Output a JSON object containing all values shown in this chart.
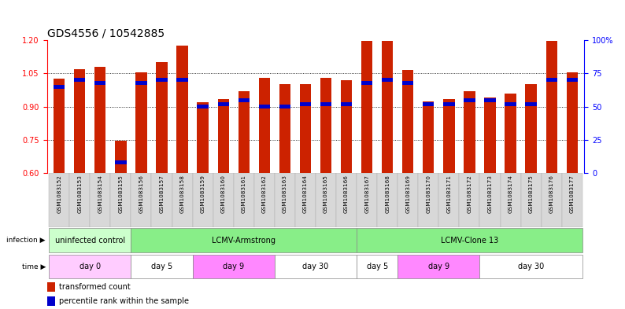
{
  "title": "GDS4556 / 10542885",
  "samples": [
    "GSM1083152",
    "GSM1083153",
    "GSM1083154",
    "GSM1083155",
    "GSM1083156",
    "GSM1083157",
    "GSM1083158",
    "GSM1083159",
    "GSM1083160",
    "GSM1083161",
    "GSM1083162",
    "GSM1083163",
    "GSM1083164",
    "GSM1083165",
    "GSM1083166",
    "GSM1083167",
    "GSM1083168",
    "GSM1083169",
    "GSM1083170",
    "GSM1083171",
    "GSM1083172",
    "GSM1083173",
    "GSM1083174",
    "GSM1083175",
    "GSM1083176",
    "GSM1083177"
  ],
  "red_values": [
    1.025,
    1.07,
    1.08,
    0.745,
    1.055,
    1.1,
    1.175,
    0.92,
    0.935,
    0.97,
    1.03,
    1.0,
    1.0,
    1.03,
    1.02,
    1.195,
    1.195,
    1.065,
    0.925,
    0.935,
    0.97,
    0.94,
    0.96,
    1.0,
    1.195,
    1.055
  ],
  "blue_percentiles": [
    65,
    70,
    68,
    8,
    68,
    70,
    70,
    50,
    52,
    55,
    50,
    50,
    52,
    52,
    52,
    68,
    70,
    68,
    52,
    52,
    55,
    55,
    52,
    52,
    70,
    70
  ],
  "ylim_left": [
    0.6,
    1.2
  ],
  "ylim_right": [
    0,
    100
  ],
  "yticks_left": [
    0.6,
    0.75,
    0.9,
    1.05,
    1.2
  ],
  "yticks_right": [
    0,
    25,
    50,
    75,
    100
  ],
  "ytick_labels_right": [
    "0",
    "25",
    "50",
    "75",
    "100%"
  ],
  "bar_color": "#cc2200",
  "blue_color": "#0000cc",
  "baseline": 0.6,
  "yrange": 0.6,
  "infection_groups": [
    {
      "label": "uninfected control",
      "start": 0,
      "end": 4,
      "color": "#ccffcc"
    },
    {
      "label": "LCMV-Armstrong",
      "start": 4,
      "end": 15,
      "color": "#88ee88"
    },
    {
      "label": "LCMV-Clone 13",
      "start": 15,
      "end": 26,
      "color": "#88ee88"
    }
  ],
  "time_groups": [
    {
      "label": "day 0",
      "start": 0,
      "end": 4,
      "color": "#ffccff"
    },
    {
      "label": "day 5",
      "start": 4,
      "end": 7,
      "color": "#ffffff"
    },
    {
      "label": "day 9",
      "start": 7,
      "end": 11,
      "color": "#ff88ff"
    },
    {
      "label": "day 30",
      "start": 11,
      "end": 15,
      "color": "#ffffff"
    },
    {
      "label": "day 5",
      "start": 15,
      "end": 17,
      "color": "#ffffff"
    },
    {
      "label": "day 9",
      "start": 17,
      "end": 21,
      "color": "#ff88ff"
    },
    {
      "label": "day 30",
      "start": 21,
      "end": 26,
      "color": "#ffffff"
    }
  ],
  "bg_color": "#ffffff",
  "title_fontsize": 10,
  "tick_fontsize": 7,
  "label_fontsize": 7.5
}
